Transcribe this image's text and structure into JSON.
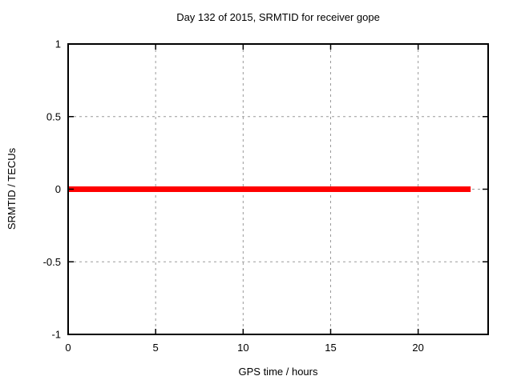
{
  "chart_data": {
    "type": "line",
    "title": "Day 132 of 2015, SRMTID for receiver gope",
    "xlabel": "GPS time / hours",
    "ylabel": "SRMTID / TECUs",
    "xlim": [
      0,
      24
    ],
    "ylim": [
      -1,
      1
    ],
    "xticks": [
      0,
      5,
      10,
      15,
      20
    ],
    "yticks": [
      -1,
      -0.5,
      0,
      0.5,
      1
    ],
    "grid": true,
    "grid_style": "dashed",
    "legend": "none",
    "series": [
      {
        "color": "#ff0000",
        "linewidth": 7,
        "x": [
          0,
          23
        ],
        "y": [
          0,
          0
        ]
      }
    ]
  },
  "colors": {
    "background": "#ffffff",
    "border": "#000000",
    "grid": "#9a9a9a",
    "text": "#000000",
    "line": "#ff0000"
  }
}
